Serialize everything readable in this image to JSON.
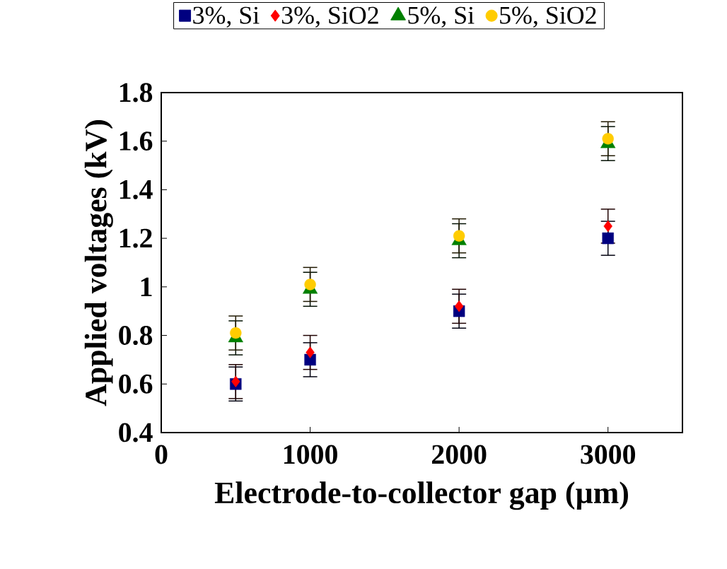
{
  "chart_data": {
    "type": "scatter",
    "xlabel": "Electrode-to-collector gap (µm)",
    "ylabel": "Applied voltages (kV)",
    "x": [
      500,
      1000,
      2000,
      3000
    ],
    "xlim": [
      0,
      3500
    ],
    "xticks": [
      0,
      1000,
      2000,
      3000
    ],
    "ylim": [
      0.4,
      1.8
    ],
    "yticks": [
      0.4,
      0.6,
      0.8,
      1,
      1.2,
      1.4,
      1.6,
      1.8
    ],
    "legend": "top",
    "grid": false,
    "series": [
      {
        "name": "3%, Si",
        "color": "#000080",
        "marker": "square",
        "values": [
          0.6,
          0.7,
          0.9,
          1.2
        ],
        "errors": [
          0.07,
          0.07,
          0.07,
          0.07
        ]
      },
      {
        "name": "3%, SiO2",
        "color": "#ff0000",
        "marker": "diamond",
        "values": [
          0.61,
          0.73,
          0.92,
          1.25
        ],
        "errors": [
          0.07,
          0.07,
          0.07,
          0.07
        ]
      },
      {
        "name": "5%, Si",
        "color": "#008000",
        "marker": "triangle",
        "values": [
          0.79,
          0.99,
          1.19,
          1.59
        ],
        "errors": [
          0.07,
          0.07,
          0.07,
          0.07
        ]
      },
      {
        "name": "5%, SiO2",
        "color": "#ffcc00",
        "marker": "circle",
        "values": [
          0.81,
          1.01,
          1.21,
          1.61
        ],
        "errors": [
          0.07,
          0.07,
          0.07,
          0.07
        ]
      }
    ]
  }
}
